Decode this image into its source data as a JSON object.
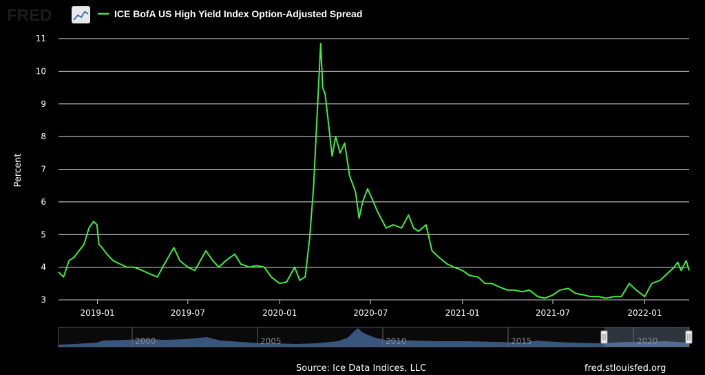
{
  "header": {
    "logo_text": "FRED",
    "logo_icon": "line-chart-icon",
    "legend_label": "ICE BofA US High Yield Index Option-Adjusted Spread",
    "legend_color": "#3ef03e"
  },
  "footer": {
    "source": "Source: Ice Data Indices, LLC",
    "site": "fred.stlouisfed.org"
  },
  "navigator": {
    "year_labels": [
      "2000",
      "2005",
      "2010",
      "2015",
      "2020"
    ],
    "fill_color": "#4a6fa5"
  },
  "chart_data": {
    "type": "line",
    "title": "",
    "xlabel": "",
    "ylabel": "Percent",
    "ylim": [
      3,
      11
    ],
    "yticks": [
      3,
      4,
      5,
      6,
      7,
      8,
      9,
      10,
      11
    ],
    "xlim": [
      "2018-10-15",
      "2022-03-31"
    ],
    "xticks": [
      "2019-01",
      "2019-07",
      "2020-01",
      "2020-07",
      "2021-01",
      "2021-07",
      "2022-01"
    ],
    "grid": true,
    "legend_position": "top-left",
    "series": [
      {
        "name": "ICE BofA US High Yield Index Option-Adjusted Spread",
        "color": "#3ef03e",
        "x": [
          "2018-10-15",
          "2018-10-25",
          "2018-11-05",
          "2018-11-15",
          "2018-11-25",
          "2018-12-05",
          "2018-12-15",
          "2018-12-24",
          "2018-12-31",
          "2019-01-04",
          "2019-01-10",
          "2019-01-20",
          "2019-02-01",
          "2019-02-15",
          "2019-03-01",
          "2019-03-15",
          "2019-04-01",
          "2019-04-15",
          "2019-05-01",
          "2019-05-15",
          "2019-06-03",
          "2019-06-15",
          "2019-07-01",
          "2019-07-15",
          "2019-08-06",
          "2019-08-20",
          "2019-09-01",
          "2019-09-15",
          "2019-10-03",
          "2019-10-15",
          "2019-11-01",
          "2019-11-15",
          "2019-12-01",
          "2019-12-15",
          "2020-01-01",
          "2020-01-15",
          "2020-01-31",
          "2020-02-10",
          "2020-02-21",
          "2020-03-01",
          "2020-03-09",
          "2020-03-16",
          "2020-03-23",
          "2020-03-27",
          "2020-04-01",
          "2020-04-07",
          "2020-04-15",
          "2020-04-22",
          "2020-05-01",
          "2020-05-10",
          "2020-05-20",
          "2020-06-01",
          "2020-06-08",
          "2020-06-15",
          "2020-06-25",
          "2020-07-01",
          "2020-07-15",
          "2020-08-01",
          "2020-08-15",
          "2020-09-01",
          "2020-09-15",
          "2020-09-25",
          "2020-10-05",
          "2020-10-20",
          "2020-11-01",
          "2020-11-15",
          "2020-12-01",
          "2020-12-15",
          "2021-01-01",
          "2021-01-15",
          "2021-02-01",
          "2021-02-15",
          "2021-03-01",
          "2021-03-15",
          "2021-04-01",
          "2021-04-15",
          "2021-05-01",
          "2021-05-15",
          "2021-06-01",
          "2021-06-15",
          "2021-07-01",
          "2021-07-15",
          "2021-08-01",
          "2021-08-15",
          "2021-09-01",
          "2021-09-15",
          "2021-10-01",
          "2021-10-15",
          "2021-11-01",
          "2021-11-15",
          "2021-12-01",
          "2021-12-15",
          "2022-01-01",
          "2022-01-15",
          "2022-02-01",
          "2022-02-15",
          "2022-03-01",
          "2022-03-08",
          "2022-03-15",
          "2022-03-25",
          "2022-03-31"
        ],
        "y": [
          3.85,
          3.7,
          4.2,
          4.3,
          4.5,
          4.7,
          5.2,
          5.4,
          5.3,
          4.7,
          4.6,
          4.4,
          4.2,
          4.1,
          4.0,
          4.0,
          3.9,
          3.8,
          3.7,
          4.1,
          4.6,
          4.2,
          4.0,
          3.9,
          4.5,
          4.2,
          4.0,
          4.2,
          4.4,
          4.1,
          4.0,
          4.05,
          4.0,
          3.7,
          3.5,
          3.55,
          4.0,
          3.6,
          3.7,
          4.9,
          6.5,
          8.7,
          10.85,
          9.5,
          9.3,
          8.5,
          7.4,
          8.0,
          7.5,
          7.8,
          6.8,
          6.3,
          5.5,
          6.0,
          6.4,
          6.2,
          5.7,
          5.2,
          5.3,
          5.2,
          5.6,
          5.2,
          5.1,
          5.3,
          4.5,
          4.3,
          4.1,
          4.0,
          3.9,
          3.75,
          3.7,
          3.5,
          3.5,
          3.4,
          3.3,
          3.3,
          3.25,
          3.3,
          3.1,
          3.05,
          3.15,
          3.3,
          3.35,
          3.2,
          3.15,
          3.1,
          3.1,
          3.05,
          3.1,
          3.1,
          3.5,
          3.3,
          3.1,
          3.5,
          3.6,
          3.8,
          4.0,
          4.15,
          3.9,
          4.2,
          3.9
        ]
      }
    ]
  }
}
